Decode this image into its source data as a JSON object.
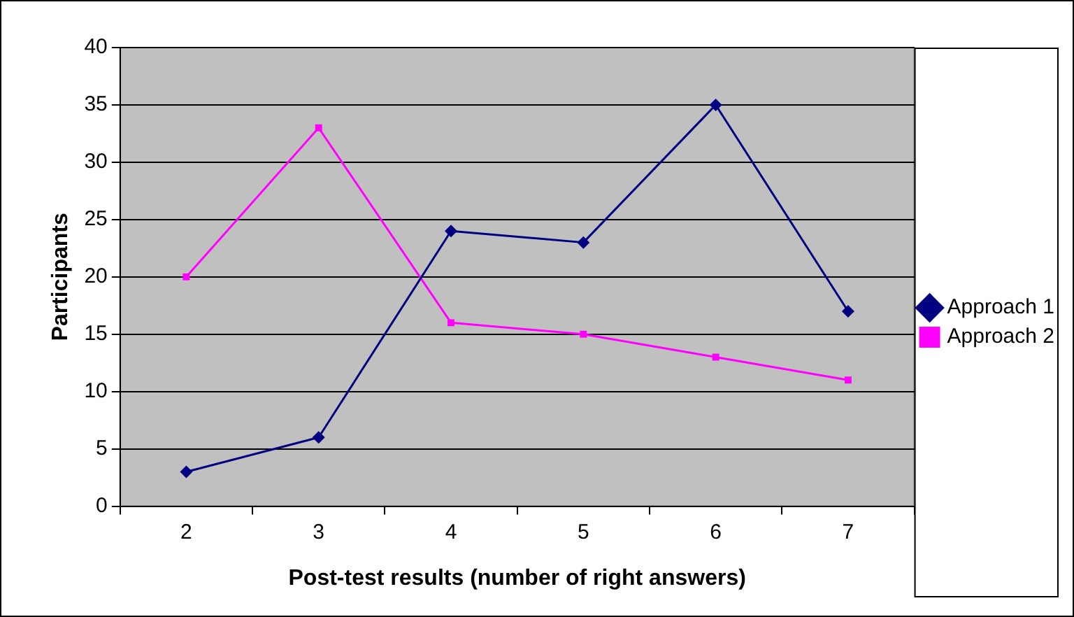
{
  "chart_data": {
    "type": "line",
    "xlabel": "Post-test results (number of right answers)",
    "ylabel": "Participants",
    "categories": [
      "2",
      "3",
      "4",
      "5",
      "6",
      "7"
    ],
    "series": [
      {
        "name": "Approach 1",
        "color": "#000080",
        "marker": "diamond",
        "values": [
          3,
          6,
          24,
          23,
          35,
          17
        ]
      },
      {
        "name": "Approach 2",
        "color": "#ff00ff",
        "marker": "square",
        "values": [
          20,
          33,
          16,
          15,
          13,
          11
        ]
      }
    ],
    "ylim": [
      0,
      40
    ],
    "yticks": [
      0,
      5,
      10,
      15,
      20,
      25,
      30,
      35,
      40
    ],
    "grid": "y",
    "legend": "right"
  }
}
